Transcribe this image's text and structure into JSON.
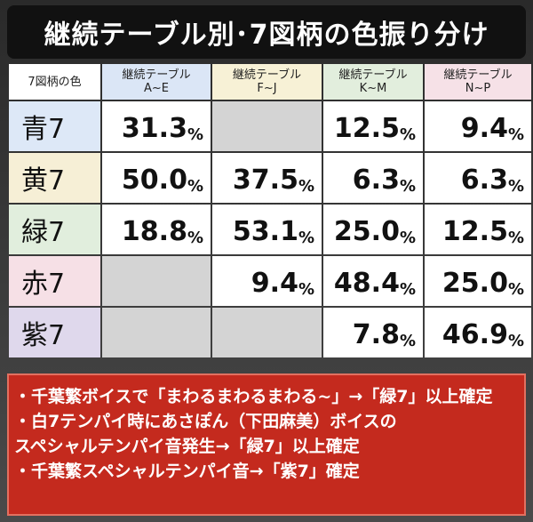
{
  "header": {
    "title": "継続テーブル別･7図柄の色振り分け"
  },
  "table": {
    "corner": "7図柄の色",
    "columns": [
      [
        "継続テーブル",
        "A~E"
      ],
      [
        "継続テーブル",
        "F~J"
      ],
      [
        "継続テーブル",
        "K~M"
      ],
      [
        "継続テーブル",
        "N~P"
      ]
    ],
    "rows": [
      [
        "青7",
        "31.3%",
        null,
        "12.5%",
        "9.4%"
      ],
      [
        "黄7",
        "50.0%",
        "37.5%",
        "6.3%",
        "6.3%"
      ],
      [
        "緑7",
        "18.8%",
        "53.1%",
        "25.0%",
        "12.5%"
      ],
      [
        "赤7",
        null,
        "9.4%",
        "48.4%",
        "25.0%"
      ],
      [
        "紫7",
        null,
        null,
        "7.8%",
        "46.9%"
      ]
    ]
  },
  "notes": [
    [
      "・千葉繁ボイスで「まわるまわるまわる~」→「緑7」以上確定"
    ],
    [
      "・白7テンパイ時にあさぽん（下田麻美）ボイスの",
      "スペシャルテンパイ音発生→「緑7」以上確定"
    ],
    [
      "・千葉繁スペシャルテンパイ音→「紫7」確定"
    ]
  ]
}
